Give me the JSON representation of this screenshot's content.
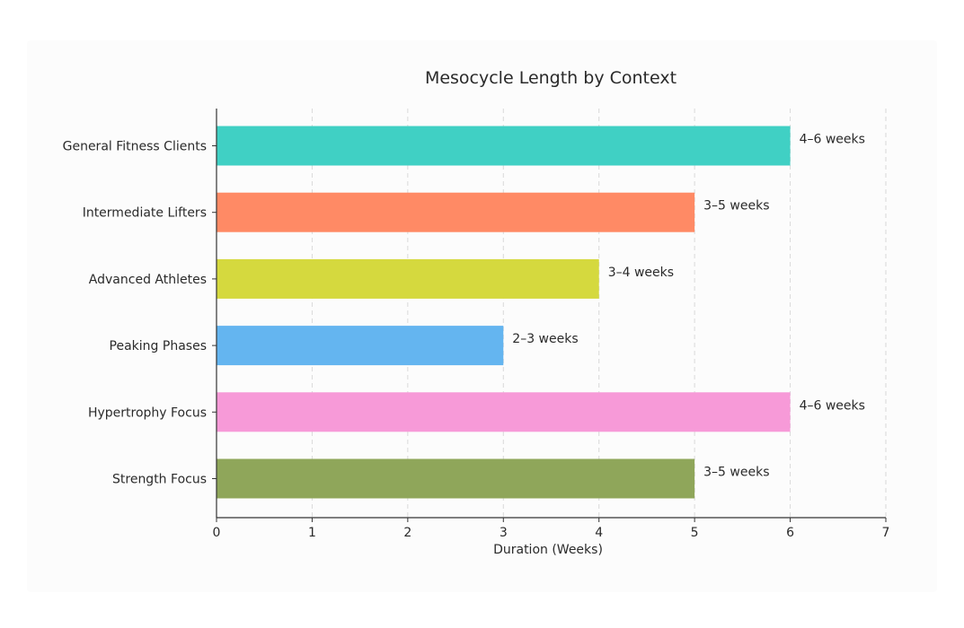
{
  "chart_data": {
    "type": "bar",
    "orientation": "horizontal",
    "title": "Mesocycle Length by Context",
    "xlabel": "Duration (Weeks)",
    "ylabel": "",
    "xlim": [
      0,
      7
    ],
    "xticks": [
      "0",
      "1",
      "2",
      "3",
      "4",
      "5",
      "6",
      "7"
    ],
    "grid": "x-dashed",
    "categories": [
      "General Fitness Clients",
      "Intermediate Lifters",
      "Advanced Athletes",
      "Peaking Phases",
      "Hypertrophy Focus",
      "Strength Focus"
    ],
    "values": [
      6,
      5,
      4,
      3,
      6,
      5
    ],
    "data_labels": [
      "4–6 weeks",
      "3–5 weeks",
      "3–4 weeks",
      "2–3 weeks",
      "4–6 weeks",
      "3–5 weeks"
    ],
    "colors": [
      "#40d0c4",
      "#ff8a65",
      "#d5d93e",
      "#64b5f0",
      "#f79ad8",
      "#8fa65a"
    ]
  }
}
